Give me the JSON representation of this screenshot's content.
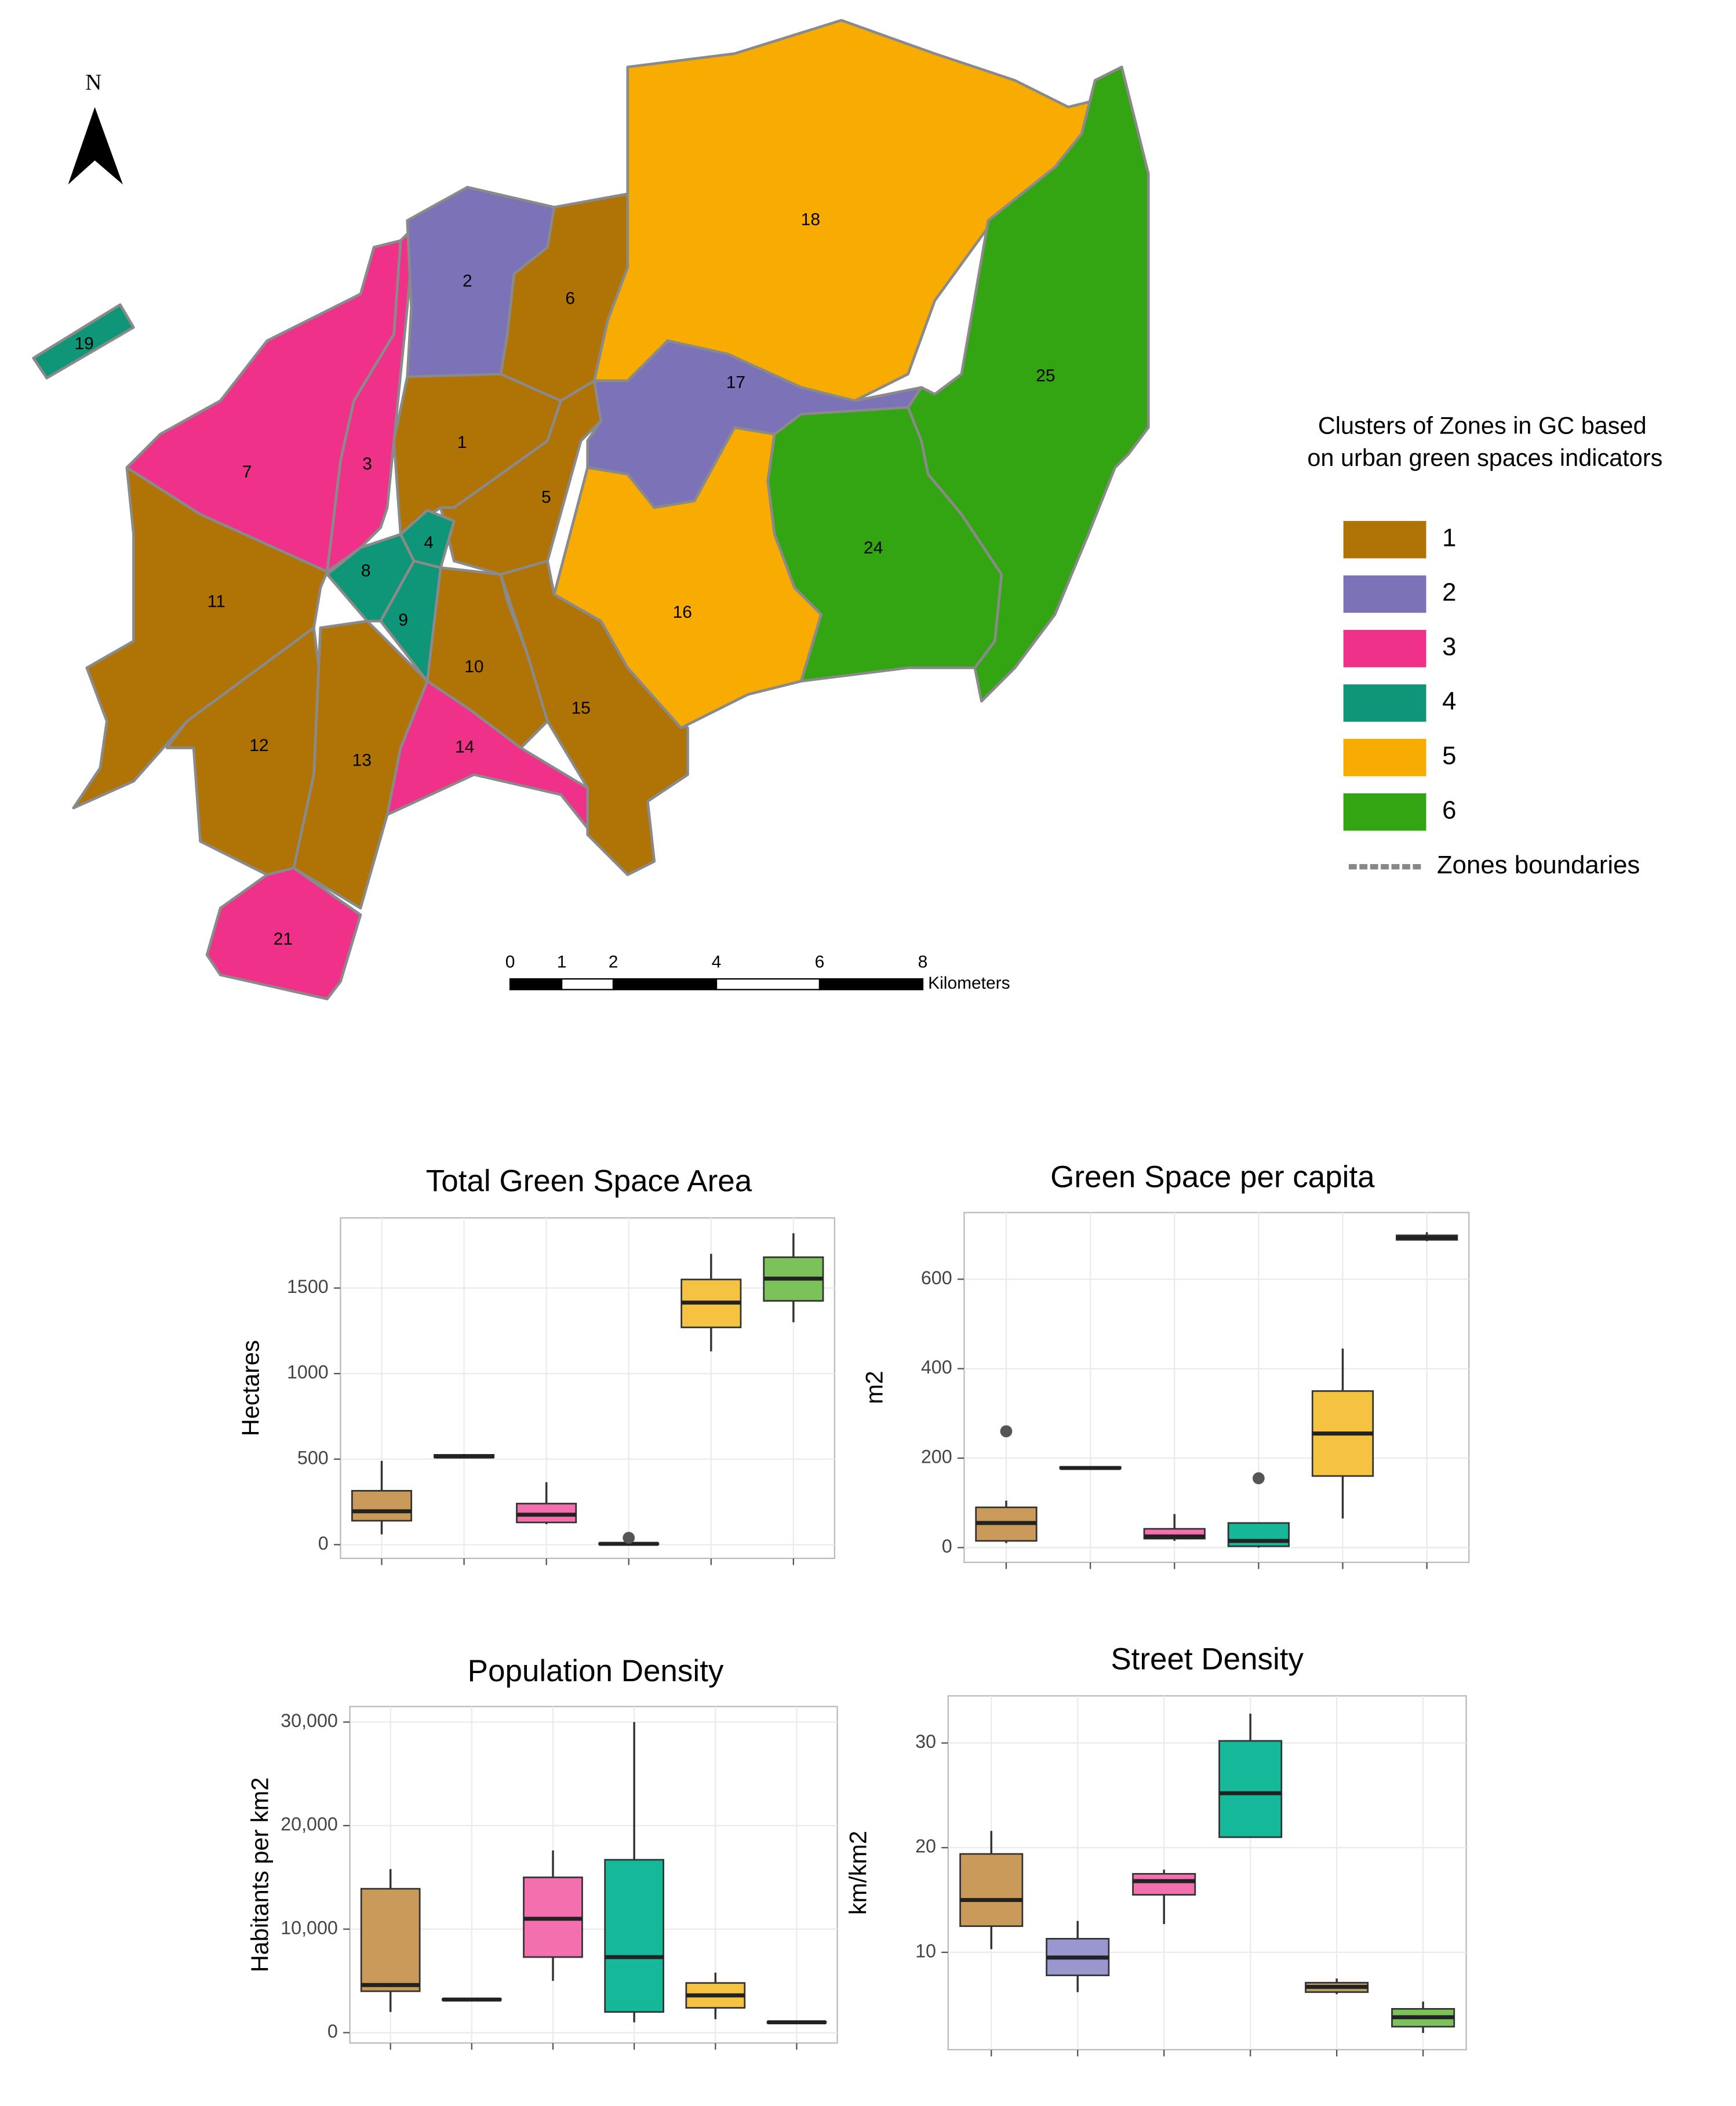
{
  "map": {
    "north": "N",
    "zones": [
      "19",
      "7",
      "3",
      "2",
      "6",
      "1",
      "5",
      "4",
      "8",
      "9",
      "11",
      "12",
      "13",
      "10",
      "14",
      "15",
      "21",
      "18",
      "17",
      "16",
      "24",
      "25"
    ],
    "legend": {
      "title": [
        "Clusters of Zones in GC based",
        "on urban green spaces indicators"
      ],
      "items": [
        {
          "label": "1",
          "color": "#b07306"
        },
        {
          "label": "2",
          "color": "#7b72b8"
        },
        {
          "label": "3",
          "color": "#f0318a"
        },
        {
          "label": "4",
          "color": "#0f9678"
        },
        {
          "label": "5",
          "color": "#f8ab00"
        },
        {
          "label": "6",
          "color": "#33a512"
        }
      ],
      "boundary": "Zones boundaries"
    },
    "scale_bar": {
      "ticks": [
        0,
        1,
        2,
        4,
        6,
        8
      ],
      "unit": "Kilometers"
    }
  },
  "chart_data": [
    {
      "type": "box",
      "title": "Total Green Space Area",
      "ylabel": "Hectares",
      "categories": [
        null,
        null,
        null,
        null,
        null,
        null
      ],
      "ylim": [
        -80,
        1910
      ],
      "yticks": [
        0,
        500,
        1000,
        1500
      ],
      "grid": true,
      "boxes": [
        {
          "color": "#c99a5a",
          "min": 60,
          "q1": 140,
          "median": 195,
          "q3": 315,
          "max": 490,
          "outliers": []
        },
        {
          "color": "#9a97cf",
          "min": 505,
          "q1": 510,
          "median": 515,
          "q3": 525,
          "max": 530,
          "outliers": []
        },
        {
          "color": "#f36fae",
          "min": 120,
          "q1": 130,
          "median": 175,
          "q3": 240,
          "max": 365,
          "outliers": []
        },
        {
          "color": "#16b89a",
          "min": 0,
          "q1": 2,
          "median": 5,
          "q3": 8,
          "max": 10,
          "outliers": [
            40
          ]
        },
        {
          "color": "#f6c242",
          "min": 1130,
          "q1": 1270,
          "median": 1415,
          "q3": 1550,
          "max": 1700,
          "outliers": []
        },
        {
          "color": "#7cc25a",
          "min": 1300,
          "q1": 1425,
          "median": 1555,
          "q3": 1680,
          "max": 1820,
          "outliers": []
        }
      ]
    },
    {
      "type": "box",
      "title": "Green Space per capita",
      "ylabel": "m2",
      "categories": [
        null,
        null,
        null,
        null,
        null,
        null
      ],
      "ylim": [
        -33,
        749
      ],
      "yticks": [
        0,
        200,
        400,
        600
      ],
      "grid": true,
      "boxes": [
        {
          "color": "#c99a5a",
          "min": 10,
          "q1": 15,
          "median": 55,
          "q3": 90,
          "max": 105,
          "outliers": [
            260
          ]
        },
        {
          "color": "#9a97cf",
          "min": 175,
          "q1": 177,
          "median": 178,
          "q3": 180,
          "max": 182,
          "outliers": []
        },
        {
          "color": "#f36fae",
          "min": 15,
          "q1": 20,
          "median": 25,
          "q3": 42,
          "max": 75,
          "outliers": []
        },
        {
          "color": "#16b89a",
          "min": 0,
          "q1": 3,
          "median": 15,
          "q3": 55,
          "max": 55,
          "outliers": [
            155
          ]
        },
        {
          "color": "#f6c242",
          "min": 65,
          "q1": 160,
          "median": 255,
          "q3": 350,
          "max": 445,
          "outliers": []
        },
        {
          "color": "#7cc25a",
          "min": 685,
          "q1": 688,
          "median": 693,
          "q3": 698,
          "max": 705,
          "outliers": []
        }
      ]
    },
    {
      "type": "box",
      "title": "Population Density",
      "ylabel": "Habitants per km2",
      "categories": [
        null,
        null,
        null,
        null,
        null,
        null
      ],
      "ylim": [
        -1000,
        31500
      ],
      "yticks": [
        0,
        {
          "value": 10000,
          "label": "10,000"
        },
        {
          "value": 20000,
          "label": "20,000"
        },
        {
          "value": 30000,
          "label": "30,000"
        }
      ],
      "grid": true,
      "boxes": [
        {
          "color": "#c99a5a",
          "min": 2000,
          "q1": 4000,
          "median": 4600,
          "q3": 13900,
          "max": 15800,
          "outliers": []
        },
        {
          "color": "#9a97cf",
          "min": 3100,
          "q1": 3150,
          "median": 3200,
          "q3": 3250,
          "max": 3300,
          "outliers": []
        },
        {
          "color": "#f36fae",
          "min": 5000,
          "q1": 7300,
          "median": 11000,
          "q3": 15000,
          "max": 17600,
          "outliers": []
        },
        {
          "color": "#16b89a",
          "min": 1000,
          "q1": 2000,
          "median": 7300,
          "q3": 16700,
          "max": 30000,
          "outliers": []
        },
        {
          "color": "#f6c242",
          "min": 1300,
          "q1": 2400,
          "median": 3600,
          "q3": 4800,
          "max": 5800,
          "outliers": []
        },
        {
          "color": "#7cc25a",
          "min": 900,
          "q1": 950,
          "median": 1000,
          "q3": 1050,
          "max": 1100,
          "outliers": []
        }
      ]
    },
    {
      "type": "box",
      "title": "Street Density",
      "ylabel": "km/km2",
      "categories": [
        null,
        null,
        null,
        null,
        null,
        null
      ],
      "ylim": [
        0.7,
        34.5
      ],
      "yticks": [
        10,
        20,
        30
      ],
      "grid": true,
      "boxes": [
        {
          "color": "#c99a5a",
          "min": 10.3,
          "q1": 12.5,
          "median": 15,
          "q3": 19.4,
          "max": 21.6,
          "outliers": []
        },
        {
          "color": "#9a97cf",
          "min": 6.2,
          "q1": 7.8,
          "median": 9.5,
          "q3": 11.3,
          "max": 13,
          "outliers": []
        },
        {
          "color": "#f36fae",
          "min": 12.7,
          "q1": 15.5,
          "median": 16.8,
          "q3": 17.5,
          "max": 17.9,
          "outliers": []
        },
        {
          "color": "#16b89a",
          "min": 21,
          "q1": 21,
          "median": 25.2,
          "q3": 30.2,
          "max": 32.8,
          "outliers": []
        },
        {
          "color": "#b8a060",
          "min": 6,
          "q1": 6.2,
          "median": 6.7,
          "q3": 7.1,
          "max": 7.5,
          "outliers": []
        },
        {
          "color": "#7cc25a",
          "min": 2.3,
          "q1": 2.9,
          "median": 3.8,
          "q3": 4.6,
          "max": 5.3,
          "outliers": []
        }
      ]
    }
  ]
}
